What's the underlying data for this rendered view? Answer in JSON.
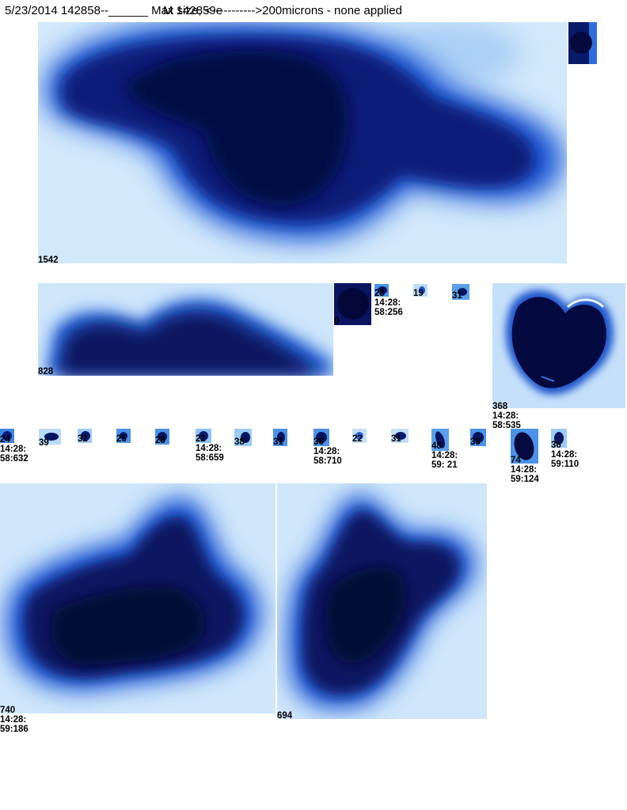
{
  "header": {
    "text": "5/23/2014 142858--______ Max size, <----------->200microns - none applied",
    "overlap_text": "M 142859e"
  },
  "colors": {
    "background": "#ffffff",
    "dark_particle": "#050a3c",
    "mid_blue": "#1f5fd6",
    "light_blue": "#cfe6fb"
  },
  "particles": [
    {
      "id": "1542",
      "label": "1542"
    },
    {
      "id": "828",
      "label": "828"
    },
    {
      "id": "0",
      "label": "0"
    },
    {
      "id": "23",
      "label": "23\n14:28:\n58:256"
    },
    {
      "id": "19",
      "label": "19"
    },
    {
      "id": "31a",
      "label": "31"
    },
    {
      "id": "368",
      "label": "368\n14:28:\n58:535"
    },
    {
      "id": "24",
      "label": "24\n14:28:\n58:632"
    },
    {
      "id": "39",
      "label": "39"
    },
    {
      "id": "32",
      "label": "32"
    },
    {
      "id": "25",
      "label": "25"
    },
    {
      "id": "28",
      "label": "28"
    },
    {
      "id": "22a",
      "label": "22\n14:28:\n58:659"
    },
    {
      "id": "38a",
      "label": "38"
    },
    {
      "id": "31b",
      "label": "31"
    },
    {
      "id": "36a",
      "label": "36\n14:28:\n58:710"
    },
    {
      "id": "22b",
      "label": "22"
    },
    {
      "id": "31c",
      "label": "31"
    },
    {
      "id": "48",
      "label": "48\n14:28:\n59: 21"
    },
    {
      "id": "33",
      "label": "33"
    },
    {
      "id": "74",
      "label": "74\n14:28:\n59:124"
    },
    {
      "id": "36b",
      "label": "36\n14:28:\n59:110"
    },
    {
      "id": "740",
      "label": "740\n14:28:\n59:186"
    },
    {
      "id": "694",
      "label": "694"
    }
  ]
}
